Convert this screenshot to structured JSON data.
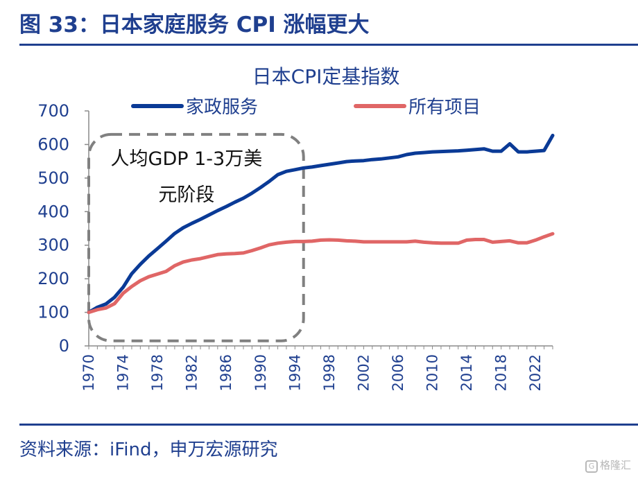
{
  "header": {
    "figure_title": "图 33：日本家庭服务 CPI 涨幅更大"
  },
  "footer": {
    "source": "资料来源：iFind，申万宏源研究"
  },
  "watermark": {
    "icon": "G",
    "text": "格隆汇"
  },
  "colors": {
    "brand": "#1f3f8f",
    "series1": "#0a3a96",
    "series2": "#e06666",
    "annotation_box": "#808080"
  },
  "chart_data": {
    "type": "line",
    "title": "日本CPI定基指数",
    "xlabel": "",
    "ylabel": "",
    "xlim": [
      1970,
      2024
    ],
    "ylim": [
      0,
      700
    ],
    "yticks": [
      0,
      100,
      200,
      300,
      400,
      500,
      600,
      700
    ],
    "xticks": [
      "1970",
      "1974",
      "1978",
      "1982",
      "1986",
      "1990",
      "1994",
      "1998",
      "2002",
      "2006",
      "2010",
      "2014",
      "2018",
      "2022"
    ],
    "grid": false,
    "legend_position": "top",
    "annotation": {
      "text_lines": [
        "人均GDP 1-3万美",
        "元阶段"
      ],
      "x_range": [
        1970,
        1995
      ],
      "y_range": [
        15,
        630
      ]
    },
    "series": [
      {
        "name": "家政服务",
        "x": [
          1970,
          1971,
          1972,
          1973,
          1974,
          1975,
          1976,
          1977,
          1978,
          1979,
          1980,
          1981,
          1982,
          1983,
          1984,
          1985,
          1986,
          1987,
          1988,
          1989,
          1990,
          1991,
          1992,
          1993,
          1994,
          1995,
          1996,
          1997,
          1998,
          1999,
          2000,
          2001,
          2002,
          2003,
          2004,
          2005,
          2006,
          2007,
          2008,
          2009,
          2010,
          2011,
          2012,
          2013,
          2014,
          2015,
          2016,
          2017,
          2018,
          2019,
          2020,
          2021,
          2022,
          2023,
          2024
        ],
        "values": [
          100,
          115,
          125,
          145,
          175,
          215,
          243,
          268,
          290,
          312,
          335,
          352,
          365,
          377,
          390,
          403,
          415,
          428,
          440,
          455,
          472,
          490,
          510,
          520,
          525,
          530,
          533,
          537,
          541,
          545,
          549,
          551,
          552,
          555,
          557,
          560,
          563,
          570,
          574,
          576,
          578,
          579,
          580,
          581,
          583,
          585,
          587,
          580,
          580,
          602,
          578,
          578,
          580,
          582,
          627
        ]
      },
      {
        "name": "所有项目",
        "x": [
          1970,
          1971,
          1972,
          1973,
          1974,
          1975,
          1976,
          1977,
          1978,
          1979,
          1980,
          1981,
          1982,
          1983,
          1984,
          1985,
          1986,
          1987,
          1988,
          1989,
          1990,
          1991,
          1992,
          1993,
          1994,
          1995,
          1996,
          1997,
          1998,
          1999,
          2000,
          2001,
          2002,
          2003,
          2004,
          2005,
          2006,
          2007,
          2008,
          2009,
          2010,
          2011,
          2012,
          2013,
          2014,
          2015,
          2016,
          2017,
          2018,
          2019,
          2020,
          2021,
          2022,
          2023,
          2024
        ],
        "values": [
          100,
          108,
          113,
          126,
          157,
          177,
          194,
          206,
          214,
          222,
          239,
          250,
          256,
          260,
          266,
          272,
          274,
          275,
          277,
          284,
          292,
          301,
          306,
          309,
          311,
          311,
          312,
          315,
          316,
          315,
          313,
          312,
          310,
          310,
          310,
          310,
          310,
          310,
          312,
          309,
          307,
          306,
          306,
          306,
          315,
          317,
          317,
          309,
          311,
          313,
          307,
          307,
          315,
          325,
          334
        ]
      }
    ]
  }
}
